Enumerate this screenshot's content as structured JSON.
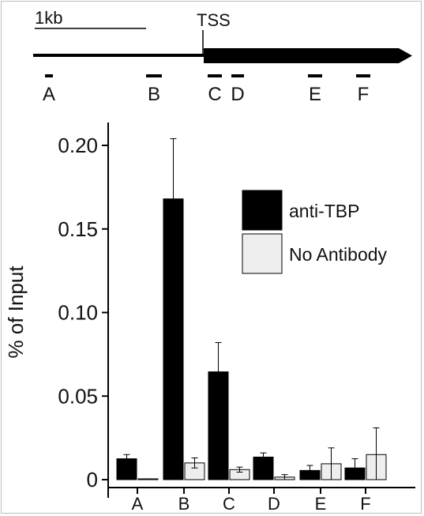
{
  "diagram": {
    "scale_label": "1kb",
    "tss_label": "TSS",
    "regions": [
      "A",
      "B",
      "C",
      "D",
      "E",
      "F"
    ]
  },
  "chart_data": {
    "type": "bar",
    "title": "",
    "xlabel": "",
    "ylabel": "% of Input",
    "categories": [
      "A",
      "B",
      "C",
      "D",
      "E",
      "F"
    ],
    "ylim": [
      0,
      0.2
    ],
    "yticks": [
      0,
      0.05,
      0.1,
      0.15,
      0.2
    ],
    "ytick_labels": [
      "0",
      "0.05",
      "0.10",
      "0.15",
      "0.20"
    ],
    "legend_position": "top-right",
    "grid": false,
    "series": [
      {
        "name": "anti-TBP",
        "color": "#000000",
        "values": [
          0.0125,
          0.168,
          0.0645,
          0.0135,
          0.0055,
          0.007
        ],
        "errors": [
          0.0025,
          0.036,
          0.0175,
          0.0025,
          0.003,
          0.0055
        ]
      },
      {
        "name": "No Antibody",
        "color": "#eeeeee",
        "values": [
          0.0005,
          0.01,
          0.006,
          0.0015,
          0.0095,
          0.015
        ],
        "errors": [
          0,
          0.003,
          0.0015,
          0.0015,
          0.0095,
          0.016
        ]
      }
    ]
  }
}
